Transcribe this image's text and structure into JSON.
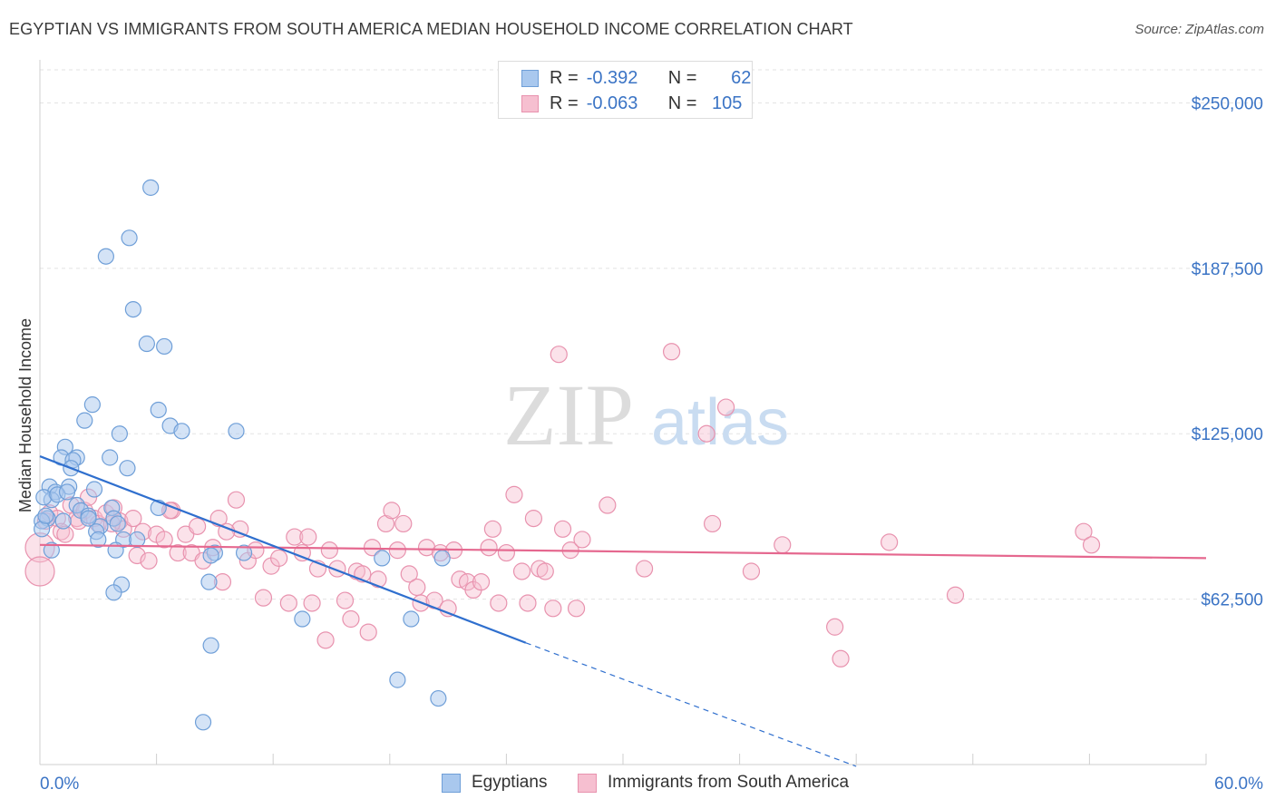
{
  "title": "EGYPTIAN VS IMMIGRANTS FROM SOUTH AMERICA MEDIAN HOUSEHOLD INCOME CORRELATION CHART",
  "source": "Source: ZipAtlas.com",
  "legend_top": {
    "rows": [
      {
        "r_label": "R =",
        "r_value": "-0.392",
        "n_label": "N =",
        "n_value": "62"
      },
      {
        "r_label": "R =",
        "r_value": "-0.063",
        "n_label": "N =",
        "n_value": "105"
      }
    ]
  },
  "colors": {
    "blue_fill": "#a9c8ee",
    "blue_stroke": "#6f9fd8",
    "blue_line": "#2f6fce",
    "pink_fill": "#f6bfd0",
    "pink_stroke": "#e892ae",
    "pink_line": "#e5688f",
    "tick_text": "#3b74c5",
    "grid": "#e3e3e3"
  },
  "chart_data": {
    "type": "scatter",
    "title": "EGYPTIAN VS IMMIGRANTS FROM SOUTH AMERICA MEDIAN HOUSEHOLD INCOME CORRELATION CHART",
    "xlabel": "",
    "ylabel": "Median Household Income",
    "xlim": [
      0,
      60
    ],
    "ylim": [
      0,
      262500
    ],
    "x_tick_labels": [
      "0.0%",
      "60.0%"
    ],
    "y_tick_values": [
      62500,
      125000,
      187500,
      250000
    ],
    "y_tick_labels": [
      "$62,500",
      "$125,000",
      "$187,500",
      "$250,000"
    ],
    "grid": true,
    "legend_position": "bottom",
    "watermark": "ZIPatlas",
    "series": [
      {
        "name": "Egyptians",
        "color": "#a9c8ee",
        "r": -0.392,
        "n": 62,
        "trend": {
          "x0": 0,
          "y0": 116500,
          "x1": 25,
          "y1": 46000,
          "dash_to_x": 42,
          "dash_to_y": -1500
        },
        "points": [
          [
            5.7,
            218000
          ],
          [
            4.6,
            199000
          ],
          [
            3.4,
            192000
          ],
          [
            4.8,
            172000
          ],
          [
            5.5,
            159000
          ],
          [
            6.4,
            158000
          ],
          [
            2.7,
            136000
          ],
          [
            6.1,
            134000
          ],
          [
            2.3,
            130000
          ],
          [
            4.1,
            125000
          ],
          [
            6.7,
            128000
          ],
          [
            7.3,
            126000
          ],
          [
            10.1,
            126000
          ],
          [
            1.3,
            120000
          ],
          [
            1.1,
            116000
          ],
          [
            1.9,
            116000
          ],
          [
            3.6,
            116000
          ],
          [
            1.7,
            115000
          ],
          [
            1.6,
            112000
          ],
          [
            4.5,
            112000
          ],
          [
            0.5,
            105000
          ],
          [
            1.5,
            105000
          ],
          [
            2.8,
            104000
          ],
          [
            0.8,
            103000
          ],
          [
            0.6,
            100000
          ],
          [
            0.2,
            101000
          ],
          [
            0.9,
            102000
          ],
          [
            1.9,
            98000
          ],
          [
            3.7,
            97000
          ],
          [
            6.1,
            97000
          ],
          [
            2.1,
            96000
          ],
          [
            2.5,
            94000
          ],
          [
            3.8,
            93000
          ],
          [
            0.4,
            93000
          ],
          [
            0.1,
            92000
          ],
          [
            1.2,
            92000
          ],
          [
            4.0,
            91000
          ],
          [
            3.1,
            90000
          ],
          [
            2.9,
            88000
          ],
          [
            0.1,
            89000
          ],
          [
            3.0,
            85000
          ],
          [
            4.3,
            85000
          ],
          [
            3.9,
            81000
          ],
          [
            9.0,
            80000
          ],
          [
            10.5,
            80000
          ],
          [
            8.8,
            79000
          ],
          [
            17.6,
            78000
          ],
          [
            20.7,
            78000
          ],
          [
            4.2,
            68000
          ],
          [
            8.7,
            69000
          ],
          [
            3.8,
            65000
          ],
          [
            13.5,
            55000
          ],
          [
            19.1,
            55000
          ],
          [
            8.8,
            45000
          ],
          [
            18.4,
            32000
          ],
          [
            20.5,
            25000
          ],
          [
            8.4,
            16000
          ],
          [
            0.6,
            81000
          ],
          [
            2.5,
            93000
          ],
          [
            1.4,
            103000
          ],
          [
            0.3,
            94000
          ],
          [
            5.0,
            85000
          ]
        ]
      },
      {
        "name": "Immigrants from South America",
        "color": "#f6bfd0",
        "r": -0.063,
        "n": 105,
        "trend": {
          "x0": 0,
          "y0": 83000,
          "x1": 60,
          "y1": 78000
        },
        "points": [
          [
            0.0,
            82000
          ],
          [
            0.0,
            73000
          ],
          [
            0.5,
            95000
          ],
          [
            0.9,
            93000
          ],
          [
            1.1,
            88000
          ],
          [
            1.6,
            98000
          ],
          [
            1.9,
            93000
          ],
          [
            2.3,
            96000
          ],
          [
            2.5,
            101000
          ],
          [
            2.8,
            93000
          ],
          [
            3.0,
            91000
          ],
          [
            3.4,
            95000
          ],
          [
            3.8,
            97000
          ],
          [
            4.1,
            92000
          ],
          [
            4.3,
            89000
          ],
          [
            4.8,
            93000
          ],
          [
            5.3,
            88000
          ],
          [
            5.0,
            79000
          ],
          [
            5.6,
            77000
          ],
          [
            6.0,
            87000
          ],
          [
            6.4,
            85000
          ],
          [
            6.8,
            96000
          ],
          [
            7.1,
            80000
          ],
          [
            7.5,
            87000
          ],
          [
            7.8,
            80000
          ],
          [
            8.1,
            90000
          ],
          [
            8.4,
            77000
          ],
          [
            8.9,
            82000
          ],
          [
            9.2,
            93000
          ],
          [
            9.4,
            69000
          ],
          [
            10.1,
            100000
          ],
          [
            10.3,
            89000
          ],
          [
            10.7,
            77000
          ],
          [
            11.1,
            81000
          ],
          [
            11.5,
            63000
          ],
          [
            11.9,
            75000
          ],
          [
            12.3,
            78000
          ],
          [
            12.8,
            61000
          ],
          [
            13.1,
            86000
          ],
          [
            13.5,
            80000
          ],
          [
            13.8,
            86000
          ],
          [
            14.0,
            61000
          ],
          [
            14.3,
            74000
          ],
          [
            14.7,
            47000
          ],
          [
            14.9,
            81000
          ],
          [
            15.3,
            74000
          ],
          [
            15.7,
            62000
          ],
          [
            16.0,
            55000
          ],
          [
            16.3,
            73000
          ],
          [
            16.6,
            72000
          ],
          [
            16.9,
            50000
          ],
          [
            17.1,
            82000
          ],
          [
            17.4,
            70000
          ],
          [
            17.8,
            91000
          ],
          [
            18.1,
            96000
          ],
          [
            18.4,
            81000
          ],
          [
            18.7,
            91000
          ],
          [
            19.0,
            72000
          ],
          [
            19.4,
            67000
          ],
          [
            19.6,
            61000
          ],
          [
            19.9,
            82000
          ],
          [
            20.3,
            62000
          ],
          [
            20.6,
            80000
          ],
          [
            21.0,
            59000
          ],
          [
            21.3,
            81000
          ],
          [
            21.6,
            70000
          ],
          [
            22.0,
            69000
          ],
          [
            22.3,
            66000
          ],
          [
            22.7,
            69000
          ],
          [
            23.1,
            82000
          ],
          [
            23.3,
            89000
          ],
          [
            23.6,
            61000
          ],
          [
            24.0,
            80000
          ],
          [
            24.4,
            102000
          ],
          [
            24.8,
            73000
          ],
          [
            25.1,
            61000
          ],
          [
            25.4,
            93000
          ],
          [
            25.7,
            74000
          ],
          [
            26.0,
            73000
          ],
          [
            26.4,
            59000
          ],
          [
            26.7,
            155000
          ],
          [
            26.9,
            89000
          ],
          [
            27.3,
            81000
          ],
          [
            27.6,
            59000
          ],
          [
            27.9,
            85000
          ],
          [
            29.2,
            98000
          ],
          [
            31.1,
            74000
          ],
          [
            32.5,
            156000
          ],
          [
            34.6,
            91000
          ],
          [
            35.3,
            135000
          ],
          [
            34.3,
            125000
          ],
          [
            36.6,
            73000
          ],
          [
            38.2,
            83000
          ],
          [
            40.9,
            52000
          ],
          [
            41.2,
            40000
          ],
          [
            43.7,
            84000
          ],
          [
            47.1,
            64000
          ],
          [
            53.7,
            88000
          ],
          [
            54.1,
            83000
          ],
          [
            0.3,
            92000
          ],
          [
            1.3,
            87000
          ],
          [
            2.0,
            92000
          ],
          [
            3.7,
            91000
          ],
          [
            6.7,
            96000
          ],
          [
            9.6,
            88000
          ]
        ]
      }
    ]
  }
}
